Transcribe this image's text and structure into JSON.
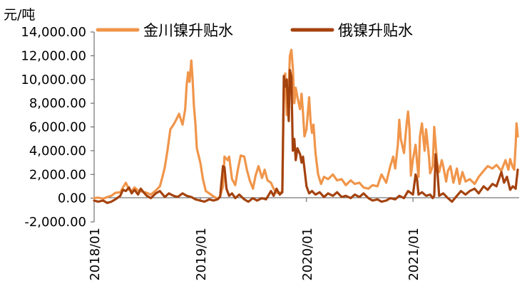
{
  "chart_data": {
    "type": "line",
    "title": "",
    "xlabel": "",
    "ylabel": "元/吨",
    "ylim": [
      -2000,
      14000
    ],
    "xlim": [
      "2018/01/01",
      "2022/01/01"
    ],
    "grid": false,
    "legend_position": "top",
    "y_ticks": [
      "-2,000.00",
      "0.00",
      "2,000.00",
      "4,000.00",
      "6,000.00",
      "8,000.00",
      "10,000.00",
      "12,000.00",
      "14,000.00"
    ],
    "x_ticks": [
      "2018/01",
      "2019/01",
      "2020/01",
      "2021/01"
    ],
    "series": [
      {
        "name": "金川镍升贴水",
        "color": "#F0954A",
        "points": [
          [
            "2018-01-01",
            0
          ],
          [
            "2018-01-15",
            50
          ],
          [
            "2018-02-01",
            -50
          ],
          [
            "2018-02-15",
            100
          ],
          [
            "2018-03-01",
            200
          ],
          [
            "2018-03-15",
            450
          ],
          [
            "2018-04-01",
            500
          ],
          [
            "2018-04-10",
            900
          ],
          [
            "2018-04-20",
            1300
          ],
          [
            "2018-05-01",
            700
          ],
          [
            "2018-05-10",
            600
          ],
          [
            "2018-05-20",
            900
          ],
          [
            "2018-06-01",
            650
          ],
          [
            "2018-06-15",
            550
          ],
          [
            "2018-07-01",
            450
          ],
          [
            "2018-07-15",
            300
          ],
          [
            "2018-08-01",
            650
          ],
          [
            "2018-08-15",
            1000
          ],
          [
            "2018-08-25",
            1900
          ],
          [
            "2018-09-01",
            2600
          ],
          [
            "2018-09-10",
            4000
          ],
          [
            "2018-09-20",
            5800
          ],
          [
            "2018-10-01",
            6200
          ],
          [
            "2018-10-10",
            6600
          ],
          [
            "2018-10-20",
            7100
          ],
          [
            "2018-10-25",
            6700
          ],
          [
            "2018-11-01",
            6200
          ],
          [
            "2018-11-10",
            7500
          ],
          [
            "2018-11-15",
            9500
          ],
          [
            "2018-11-20",
            10600
          ],
          [
            "2018-11-25",
            9800
          ],
          [
            "2018-12-01",
            11600
          ],
          [
            "2018-12-05",
            10200
          ],
          [
            "2018-12-10",
            7800
          ],
          [
            "2018-12-15",
            6300
          ],
          [
            "2018-12-20",
            4200
          ],
          [
            "2019-01-01",
            3000
          ],
          [
            "2019-01-10",
            1600
          ],
          [
            "2019-01-20",
            600
          ],
          [
            "2019-02-01",
            400
          ],
          [
            "2019-02-15",
            150
          ],
          [
            "2019-03-01",
            -50
          ],
          [
            "2019-03-10",
            150
          ],
          [
            "2019-03-20",
            1000
          ],
          [
            "2019-03-25",
            3500
          ],
          [
            "2019-04-05",
            3200
          ],
          [
            "2019-04-10",
            3500
          ],
          [
            "2019-04-20",
            1600
          ],
          [
            "2019-05-01",
            1100
          ],
          [
            "2019-05-10",
            2400
          ],
          [
            "2019-05-20",
            3600
          ],
          [
            "2019-06-01",
            3500
          ],
          [
            "2019-06-10",
            2400
          ],
          [
            "2019-06-20",
            1500
          ],
          [
            "2019-07-01",
            800
          ],
          [
            "2019-07-10",
            1900
          ],
          [
            "2019-07-20",
            2700
          ],
          [
            "2019-08-01",
            1700
          ],
          [
            "2019-08-10",
            2400
          ],
          [
            "2019-08-20",
            1500
          ],
          [
            "2019-09-01",
            1300
          ],
          [
            "2019-09-10",
            800
          ],
          [
            "2019-09-20",
            450
          ],
          [
            "2019-10-01",
            400
          ],
          [
            "2019-10-10",
            600
          ],
          [
            "2019-10-15",
            9000
          ],
          [
            "2019-10-20",
            10500
          ],
          [
            "2019-10-25",
            7000
          ],
          [
            "2019-11-01",
            9500
          ],
          [
            "2019-11-05",
            12000
          ],
          [
            "2019-11-10",
            12500
          ],
          [
            "2019-11-15",
            11000
          ],
          [
            "2019-11-20",
            8000
          ],
          [
            "2019-11-25",
            9300
          ],
          [
            "2019-12-01",
            8500
          ],
          [
            "2019-12-10",
            7500
          ],
          [
            "2019-12-15",
            8800
          ],
          [
            "2019-12-20",
            7200
          ],
          [
            "2019-12-25",
            5200
          ],
          [
            "2020-01-01",
            5800
          ],
          [
            "2020-01-10",
            8500
          ],
          [
            "2020-01-15",
            6500
          ],
          [
            "2020-01-20",
            5500
          ],
          [
            "2020-01-25",
            6200
          ],
          [
            "2020-02-01",
            3800
          ],
          [
            "2020-02-10",
            2000
          ],
          [
            "2020-02-20",
            1200
          ],
          [
            "2020-03-01",
            1800
          ],
          [
            "2020-03-15",
            1600
          ],
          [
            "2020-04-01",
            2000
          ],
          [
            "2020-04-15",
            1500
          ],
          [
            "2020-05-01",
            1600
          ],
          [
            "2020-05-15",
            1100
          ],
          [
            "2020-06-01",
            1500
          ],
          [
            "2020-06-15",
            1200
          ],
          [
            "2020-07-01",
            1300
          ],
          [
            "2020-07-15",
            900
          ],
          [
            "2020-08-01",
            800
          ],
          [
            "2020-08-15",
            1100
          ],
          [
            "2020-09-01",
            1000
          ],
          [
            "2020-09-15",
            2000
          ],
          [
            "2020-10-01",
            1300
          ],
          [
            "2020-10-15",
            2700
          ],
          [
            "2020-10-25",
            3500
          ],
          [
            "2020-11-01",
            2500
          ],
          [
            "2020-11-10",
            4500
          ],
          [
            "2020-11-15",
            6600
          ],
          [
            "2020-11-20",
            5000
          ],
          [
            "2020-12-01",
            3800
          ],
          [
            "2020-12-10",
            6200
          ],
          [
            "2020-12-15",
            7300
          ],
          [
            "2020-12-20",
            5800
          ],
          [
            "2020-12-25",
            1900
          ],
          [
            "2021-01-01",
            3300
          ],
          [
            "2021-01-10",
            4500
          ],
          [
            "2021-01-15",
            3000
          ],
          [
            "2021-01-20",
            1800
          ],
          [
            "2021-01-25",
            5200
          ],
          [
            "2021-02-01",
            6300
          ],
          [
            "2021-02-10",
            4000
          ],
          [
            "2021-02-15",
            5800
          ],
          [
            "2021-02-25",
            3500
          ],
          [
            "2021-03-01",
            2100
          ],
          [
            "2021-03-10",
            2700
          ],
          [
            "2021-03-15",
            6000
          ],
          [
            "2021-03-20",
            4500
          ],
          [
            "2021-03-25",
            3000
          ],
          [
            "2021-04-01",
            2200
          ],
          [
            "2021-04-10",
            3200
          ],
          [
            "2021-04-15",
            2700
          ],
          [
            "2021-04-25",
            1400
          ],
          [
            "2021-05-01",
            2300
          ],
          [
            "2021-05-10",
            2700
          ],
          [
            "2021-05-20",
            1300
          ],
          [
            "2021-06-01",
            2500
          ],
          [
            "2021-06-10",
            1200
          ],
          [
            "2021-06-20",
            2200
          ],
          [
            "2021-07-01",
            1400
          ],
          [
            "2021-07-15",
            1600
          ],
          [
            "2021-08-01",
            1200
          ],
          [
            "2021-08-15",
            1800
          ],
          [
            "2021-09-01",
            2300
          ],
          [
            "2021-09-15",
            2700
          ],
          [
            "2021-10-01",
            2500
          ],
          [
            "2021-10-15",
            2800
          ],
          [
            "2021-11-01",
            2300
          ],
          [
            "2021-11-15",
            3200
          ],
          [
            "2021-11-25",
            2400
          ],
          [
            "2021-12-01",
            3300
          ],
          [
            "2021-12-10",
            2600
          ],
          [
            "2021-12-15",
            2400
          ],
          [
            "2021-12-20",
            4500
          ],
          [
            "2021-12-23",
            6300
          ],
          [
            "2021-12-27",
            5200
          ]
        ]
      },
      {
        "name": "俄镍升贴水",
        "color": "#A4420E",
        "points": [
          [
            "2018-01-01",
            -200
          ],
          [
            "2018-01-15",
            -300
          ],
          [
            "2018-02-01",
            -200
          ],
          [
            "2018-02-15",
            -400
          ],
          [
            "2018-03-01",
            -300
          ],
          [
            "2018-03-15",
            -100
          ],
          [
            "2018-04-01",
            200
          ],
          [
            "2018-04-10",
            700
          ],
          [
            "2018-04-20",
            600
          ],
          [
            "2018-05-01",
            900
          ],
          [
            "2018-05-10",
            400
          ],
          [
            "2018-05-20",
            700
          ],
          [
            "2018-06-01",
            300
          ],
          [
            "2018-06-10",
            800
          ],
          [
            "2018-06-20",
            500
          ],
          [
            "2018-07-01",
            200
          ],
          [
            "2018-07-15",
            0
          ],
          [
            "2018-08-01",
            400
          ],
          [
            "2018-08-15",
            600
          ],
          [
            "2018-09-01",
            100
          ],
          [
            "2018-09-15",
            400
          ],
          [
            "2018-10-01",
            200
          ],
          [
            "2018-10-15",
            100
          ],
          [
            "2018-11-01",
            400
          ],
          [
            "2018-11-15",
            200
          ],
          [
            "2018-12-01",
            100
          ],
          [
            "2018-12-15",
            -100
          ],
          [
            "2019-01-01",
            -200
          ],
          [
            "2019-01-15",
            -300
          ],
          [
            "2019-02-01",
            -100
          ],
          [
            "2019-02-15",
            -200
          ],
          [
            "2019-03-01",
            -100
          ],
          [
            "2019-03-10",
            100
          ],
          [
            "2019-03-20",
            2700
          ],
          [
            "2019-03-25",
            2600
          ],
          [
            "2019-04-01",
            800
          ],
          [
            "2019-04-10",
            200
          ],
          [
            "2019-04-20",
            400
          ],
          [
            "2019-05-01",
            0
          ],
          [
            "2019-05-15",
            300
          ],
          [
            "2019-06-01",
            -100
          ],
          [
            "2019-06-15",
            -300
          ],
          [
            "2019-07-01",
            0
          ],
          [
            "2019-07-15",
            -200
          ],
          [
            "2019-08-01",
            0
          ],
          [
            "2019-08-15",
            -100
          ],
          [
            "2019-09-01",
            600
          ],
          [
            "2019-09-10",
            200
          ],
          [
            "2019-09-20",
            800
          ],
          [
            "2019-10-01",
            300
          ],
          [
            "2019-10-10",
            500
          ],
          [
            "2019-10-15",
            10300
          ],
          [
            "2019-10-20",
            9400
          ],
          [
            "2019-10-25",
            10000
          ],
          [
            "2019-11-01",
            6500
          ],
          [
            "2019-11-05",
            10800
          ],
          [
            "2019-11-10",
            10200
          ],
          [
            "2019-11-15",
            4000
          ],
          [
            "2019-11-20",
            5000
          ],
          [
            "2019-11-25",
            3200
          ],
          [
            "2019-12-01",
            4200
          ],
          [
            "2019-12-10",
            3700
          ],
          [
            "2019-12-15",
            3000
          ],
          [
            "2019-12-20",
            3500
          ],
          [
            "2019-12-25",
            2500
          ],
          [
            "2020-01-01",
            1000
          ],
          [
            "2020-01-10",
            400
          ],
          [
            "2020-01-20",
            600
          ],
          [
            "2020-02-01",
            300
          ],
          [
            "2020-02-15",
            500
          ],
          [
            "2020-03-01",
            100
          ],
          [
            "2020-03-15",
            400
          ],
          [
            "2020-04-01",
            200
          ],
          [
            "2020-04-15",
            500
          ],
          [
            "2020-05-01",
            100
          ],
          [
            "2020-05-15",
            200
          ],
          [
            "2020-06-01",
            0
          ],
          [
            "2020-06-15",
            300
          ],
          [
            "2020-07-01",
            100
          ],
          [
            "2020-07-15",
            400
          ],
          [
            "2020-08-01",
            0
          ],
          [
            "2020-08-15",
            -200
          ],
          [
            "2020-09-01",
            -100
          ],
          [
            "2020-09-15",
            -300
          ],
          [
            "2020-10-01",
            -200
          ],
          [
            "2020-10-15",
            0
          ],
          [
            "2020-11-01",
            -100
          ],
          [
            "2020-11-15",
            200
          ],
          [
            "2020-12-01",
            0
          ],
          [
            "2020-12-15",
            600
          ],
          [
            "2021-01-01",
            300
          ],
          [
            "2021-01-10",
            2000
          ],
          [
            "2021-01-15",
            1600
          ],
          [
            "2021-01-20",
            300
          ],
          [
            "2021-02-01",
            500
          ],
          [
            "2021-02-15",
            200
          ],
          [
            "2021-03-01",
            300
          ],
          [
            "2021-03-10",
            0
          ],
          [
            "2021-03-15",
            200
          ],
          [
            "2021-03-20",
            3700
          ],
          [
            "2021-03-25",
            2600
          ],
          [
            "2021-04-01",
            200
          ],
          [
            "2021-04-15",
            400
          ],
          [
            "2021-05-01",
            0
          ],
          [
            "2021-05-15",
            -300
          ],
          [
            "2021-06-01",
            200
          ],
          [
            "2021-06-15",
            600
          ],
          [
            "2021-07-01",
            300
          ],
          [
            "2021-07-15",
            600
          ],
          [
            "2021-08-01",
            800
          ],
          [
            "2021-08-15",
            400
          ],
          [
            "2021-09-01",
            1000
          ],
          [
            "2021-09-15",
            700
          ],
          [
            "2021-10-01",
            1200
          ],
          [
            "2021-10-15",
            1000
          ],
          [
            "2021-11-01",
            2200
          ],
          [
            "2021-11-10",
            1300
          ],
          [
            "2021-11-20",
            1800
          ],
          [
            "2021-12-01",
            700
          ],
          [
            "2021-12-10",
            1000
          ],
          [
            "2021-12-20",
            800
          ],
          [
            "2021-12-27",
            2400
          ]
        ]
      }
    ]
  }
}
